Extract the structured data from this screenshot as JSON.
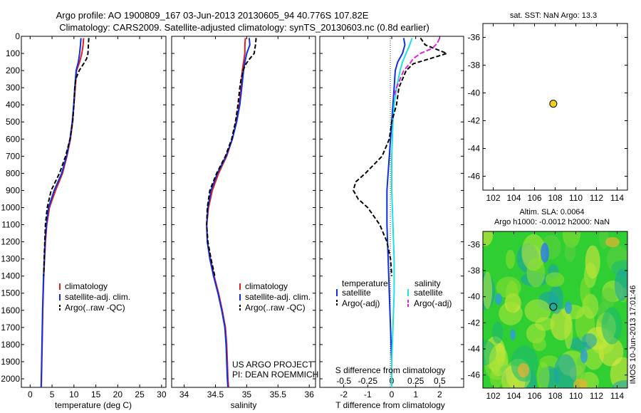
{
  "figure": {
    "title_line1": "Argo profile: AO 1900809_167 03-Jun-2013 20130605_94 40.776S 107.82E",
    "title_line2": "Climatology: CARS2009. Satellite-adjusted climatology: synTS_20130603.nc (0.8d earlier)",
    "side_stamp": "IMOS 10-Jun-2013 17:01:46",
    "credit_line1": "US ARGO PROJECT",
    "credit_line2": "PI: DEAN ROEMMICH"
  },
  "colors": {
    "climatology": "#e02020",
    "satellite": "#1030e0",
    "argo": "#000000",
    "sal_satellite": "#20e0e0",
    "sal_argo": "#e020e0",
    "marker": "#f0d020"
  },
  "chart_data": [
    {
      "id": "temperature",
      "type": "line",
      "xlabel": "temperature (deg C)",
      "xlim": [
        -2,
        31
      ],
      "xticks": [
        0,
        5,
        10,
        15,
        20,
        25,
        30
      ],
      "ylim": [
        2050,
        0
      ],
      "yticks": [
        0,
        100,
        200,
        300,
        400,
        500,
        600,
        700,
        800,
        900,
        1000,
        1100,
        1200,
        1300,
        1400,
        1500,
        1600,
        1700,
        1800,
        1900,
        2000
      ],
      "legend": [
        "climatology",
        "satellite-adj. clim.",
        "Argo(..raw -QC)"
      ],
      "series": [
        {
          "name": "climatology",
          "key": "climatology",
          "depth": [
            10,
            50,
            100,
            150,
            200,
            300,
            400,
            500,
            600,
            700,
            800,
            900,
            1000,
            1100,
            1200,
            1300,
            1400,
            1600,
            1800,
            2000,
            2050
          ],
          "values": [
            12.2,
            12.1,
            11.8,
            11.3,
            10.6,
            10.3,
            10.0,
            9.7,
            9.2,
            8.4,
            7.4,
            5.8,
            4.4,
            3.8,
            3.5,
            3.3,
            3.1,
            2.9,
            2.75,
            2.6,
            2.55
          ]
        },
        {
          "name": "satellite-adj. clim.",
          "key": "satellite",
          "depth": [
            10,
            50,
            100,
            150,
            200,
            300,
            400,
            500,
            600,
            700,
            800,
            900,
            1000,
            1100,
            1200,
            1300,
            1400,
            1600,
            1800,
            2000,
            2050
          ],
          "values": [
            11.6,
            11.5,
            11.3,
            11.0,
            10.5,
            10.2,
            9.95,
            9.6,
            9.1,
            8.3,
            7.2,
            5.5,
            4.2,
            3.7,
            3.4,
            3.25,
            3.05,
            2.85,
            2.7,
            2.55,
            2.5
          ]
        },
        {
          "name": "Argo(..raw -QC)",
          "key": "argo",
          "depth": [
            10,
            50,
            100,
            130,
            160,
            200,
            250,
            300,
            400,
            500,
            600,
            700,
            800,
            900,
            1000,
            1100,
            1200,
            1300,
            1400
          ],
          "values": [
            13.4,
            13.3,
            13.2,
            12.9,
            12.2,
            11.2,
            10.4,
            10.2,
            10.0,
            9.7,
            9.1,
            8.1,
            6.7,
            4.8,
            3.9,
            3.5,
            3.35,
            3.2,
            3.1
          ]
        }
      ]
    },
    {
      "id": "salinity",
      "type": "line",
      "xlabel": "salinity",
      "xlim": [
        33.8,
        36.1
      ],
      "xticks": [
        34,
        34.5,
        35,
        35.5,
        36
      ],
      "ylim": [
        2050,
        0
      ],
      "legend": [
        "climatology",
        "satellite-adj. clim.",
        "Argo(..raw -QC)"
      ],
      "series": [
        {
          "name": "climatology",
          "key": "climatology",
          "depth": [
            10,
            50,
            100,
            150,
            200,
            300,
            400,
            500,
            600,
            700,
            800,
            900,
            1000,
            1100,
            1200,
            1300,
            1400,
            1500,
            1600,
            1700,
            1800,
            1900,
            2000,
            2050
          ],
          "values": [
            34.98,
            34.97,
            34.97,
            34.95,
            34.93,
            34.91,
            34.88,
            34.83,
            34.77,
            34.68,
            34.55,
            34.45,
            34.39,
            34.36,
            34.37,
            34.42,
            34.48,
            34.55,
            34.61,
            34.66,
            34.68,
            34.69,
            34.7,
            34.71
          ]
        },
        {
          "name": "satellite-adj. clim.",
          "key": "satellite",
          "depth": [
            10,
            50,
            100,
            150,
            200,
            300,
            400,
            500,
            600,
            700,
            800,
            900,
            1000,
            1100,
            1200,
            1300,
            1400,
            1500,
            1600,
            1700,
            1800,
            1900,
            2000,
            2050
          ],
          "values": [
            35.04,
            35.05,
            35.0,
            34.97,
            34.95,
            34.92,
            34.89,
            34.84,
            34.77,
            34.67,
            34.53,
            34.43,
            34.38,
            34.36,
            34.37,
            34.41,
            34.47,
            34.54,
            34.6,
            34.65,
            34.67,
            34.68,
            34.69,
            34.7
          ]
        },
        {
          "name": "Argo(..raw -QC)",
          "key": "argo",
          "depth": [
            10,
            50,
            100,
            130,
            160,
            200,
            250,
            300,
            400,
            500,
            600,
            700,
            800,
            900,
            1000,
            1100,
            1200,
            1300,
            1400
          ],
          "values": [
            35.15,
            35.14,
            35.12,
            35.05,
            34.99,
            34.94,
            34.91,
            34.89,
            34.86,
            34.82,
            34.76,
            34.66,
            34.52,
            34.41,
            34.37,
            34.36,
            34.38,
            34.43,
            34.49
          ]
        }
      ]
    },
    {
      "id": "difference",
      "type": "line",
      "xlabel": "T difference from climatology",
      "xlabel_top": "S difference from climatology",
      "xlim": [
        -3,
        3
      ],
      "xticks": [
        -2,
        -1,
        0,
        1,
        2
      ],
      "xticks_top_labels": [
        "-0.5",
        "-0.25",
        "0",
        "0.25",
        "0.5"
      ],
      "xticks_top_pos": [
        -2,
        -1,
        0,
        1,
        2
      ],
      "legend_temp_title": "temperature",
      "legend_sal_title": "salinity",
      "legend_temp": [
        "satellite",
        "Argo(-adj)"
      ],
      "legend_sal": [
        "satellite",
        "Argo(-adj)"
      ],
      "series": [
        {
          "name": "satellite",
          "key": "satellite",
          "depth": [
            10,
            50,
            100,
            150,
            200,
            300,
            400,
            500,
            700,
            900,
            1100,
            1300,
            1500,
            1700,
            1900,
            2050
          ],
          "values": [
            0.5,
            0.55,
            0.45,
            0.25,
            0.15,
            0.1,
            0.05,
            0.0,
            -0.1,
            -0.2,
            -0.2,
            -0.15,
            -0.1,
            -0.05,
            0.0,
            0.0
          ]
        },
        {
          "name": "satellite",
          "key": "sal_satellite",
          "depth": [
            10,
            50,
            100,
            150,
            200,
            300,
            400,
            500,
            700,
            900,
            1100,
            1300,
            1500,
            1700,
            1900,
            2050
          ],
          "values": [
            0.85,
            0.75,
            0.6,
            0.45,
            0.35,
            0.2,
            0.1,
            0.05,
            0.0,
            0.0,
            0.05,
            0.1,
            0.1,
            0.05,
            0.0,
            0.0
          ]
        },
        {
          "name": "Argo(-adj)",
          "key": "argo",
          "depth": [
            10,
            50,
            100,
            130,
            160,
            200,
            300,
            400,
            500,
            600,
            700,
            800,
            850,
            900,
            950,
            1000,
            1100,
            1200,
            1300,
            1400
          ],
          "values": [
            1.2,
            1.4,
            2.3,
            1.6,
            0.9,
            0.6,
            0.3,
            0.2,
            0.0,
            -0.1,
            -0.4,
            -1.1,
            -1.5,
            -1.6,
            -1.4,
            -1.0,
            -0.5,
            -0.2,
            -0.05,
            0.0
          ]
        },
        {
          "name": "Argo(-adj)",
          "key": "sal_argo",
          "depth": [
            10,
            40,
            70,
            100,
            130,
            160,
            200,
            250,
            300,
            350
          ],
          "values": [
            2.0,
            1.9,
            1.7,
            1.2,
            0.9,
            0.75,
            0.5,
            0.35,
            0.2,
            0.1
          ]
        }
      ]
    },
    {
      "id": "sst_map",
      "type": "scatter",
      "title": "sat. SST: NaN Argo: 13.3",
      "xlim": [
        101,
        115
      ],
      "ylim": [
        -47,
        -35
      ],
      "xticks": [
        102,
        104,
        106,
        108,
        110,
        112,
        114
      ],
      "yticks": [
        -36,
        -38,
        -40,
        -42,
        -44,
        -46
      ],
      "points": [
        {
          "x": 107.82,
          "y": -40.776
        }
      ]
    },
    {
      "id": "sla_map",
      "type": "heatmap",
      "title_line1": "Altim. SLA: 0.0064",
      "title_line2": "Argo h1000: -0.0012 h2000: NaN",
      "xlim": [
        101,
        115
      ],
      "ylim": [
        -47,
        -35
      ],
      "xticks": [
        102,
        104,
        106,
        108,
        110,
        112,
        114
      ],
      "yticks": [
        -36,
        -38,
        -40,
        -42,
        -44,
        -46
      ],
      "points": [
        {
          "x": 107.82,
          "y": -40.776
        }
      ]
    }
  ]
}
